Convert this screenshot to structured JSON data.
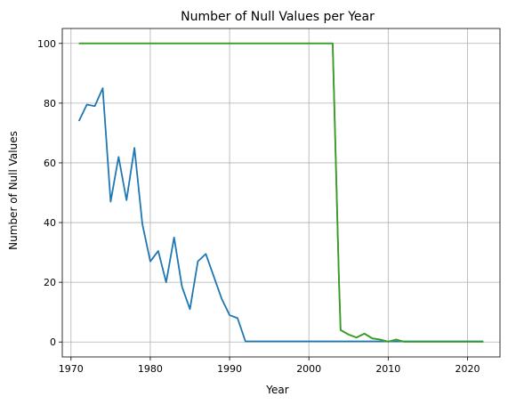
{
  "chart_data": {
    "type": "line",
    "title": "Number of Null Values per Year",
    "xlabel": "Year",
    "ylabel": "Number of Null Values",
    "xlim": [
      1968.9,
      2024.1
    ],
    "ylim": [
      -5,
      105
    ],
    "xticks": [
      1970,
      1980,
      1990,
      2000,
      2010,
      2020
    ],
    "yticks": [
      0,
      20,
      40,
      60,
      80,
      100
    ],
    "grid": true,
    "series": [
      {
        "color": "#1f77b4",
        "points": [
          [
            1971,
            74
          ],
          [
            1972,
            79.5
          ],
          [
            1973,
            79
          ],
          [
            1974,
            85
          ],
          [
            1975,
            47
          ],
          [
            1976,
            62
          ],
          [
            1977,
            47.5
          ],
          [
            1978,
            65
          ],
          [
            1979,
            39.5
          ],
          [
            1980,
            27
          ],
          [
            1981,
            30.5
          ],
          [
            1982,
            20
          ],
          [
            1983,
            35
          ],
          [
            1984,
            18.5
          ],
          [
            1985,
            11
          ],
          [
            1986,
            27
          ],
          [
            1987,
            29.5
          ],
          [
            1988,
            22
          ],
          [
            1989,
            14.5
          ],
          [
            1990,
            9
          ],
          [
            1991,
            8
          ],
          [
            1992,
            0.2
          ],
          [
            2022,
            0.2
          ]
        ]
      },
      {
        "color": "#ff7f0e",
        "points": [
          [
            1971,
            100
          ],
          [
            2003,
            100
          ],
          [
            2003.1,
            90
          ],
          [
            2003.2,
            80
          ],
          [
            2003.3,
            70
          ],
          [
            2003.4,
            60
          ],
          [
            2003.5,
            50
          ],
          [
            2003.6,
            40
          ],
          [
            2003.7,
            30
          ],
          [
            2003.8,
            20
          ],
          [
            2003.9,
            12
          ],
          [
            2004,
            4
          ],
          [
            2005,
            2.5
          ],
          [
            2006,
            1.5
          ],
          [
            2007,
            2.8
          ],
          [
            2008,
            1.2
          ],
          [
            2009,
            0.8
          ],
          [
            2010,
            0.1
          ],
          [
            2011,
            0.8
          ],
          [
            2012,
            0.1
          ],
          [
            2022,
            0.1
          ]
        ]
      },
      {
        "color": "#2ca02c",
        "points": [
          [
            1971,
            100
          ],
          [
            2003,
            100
          ],
          [
            2003.1,
            90
          ],
          [
            2003.2,
            80
          ],
          [
            2003.3,
            70
          ],
          [
            2003.4,
            60
          ],
          [
            2003.5,
            50
          ],
          [
            2003.6,
            40
          ],
          [
            2003.7,
            30
          ],
          [
            2003.8,
            20
          ],
          [
            2003.9,
            12
          ],
          [
            2004,
            4
          ],
          [
            2005,
            2.5
          ],
          [
            2006,
            1.5
          ],
          [
            2007,
            2.8
          ],
          [
            2008,
            1.2
          ],
          [
            2009,
            0.8
          ],
          [
            2010,
            0.1
          ],
          [
            2011,
            0.8
          ],
          [
            2012,
            0.1
          ],
          [
            2022,
            0.1
          ]
        ]
      }
    ]
  }
}
